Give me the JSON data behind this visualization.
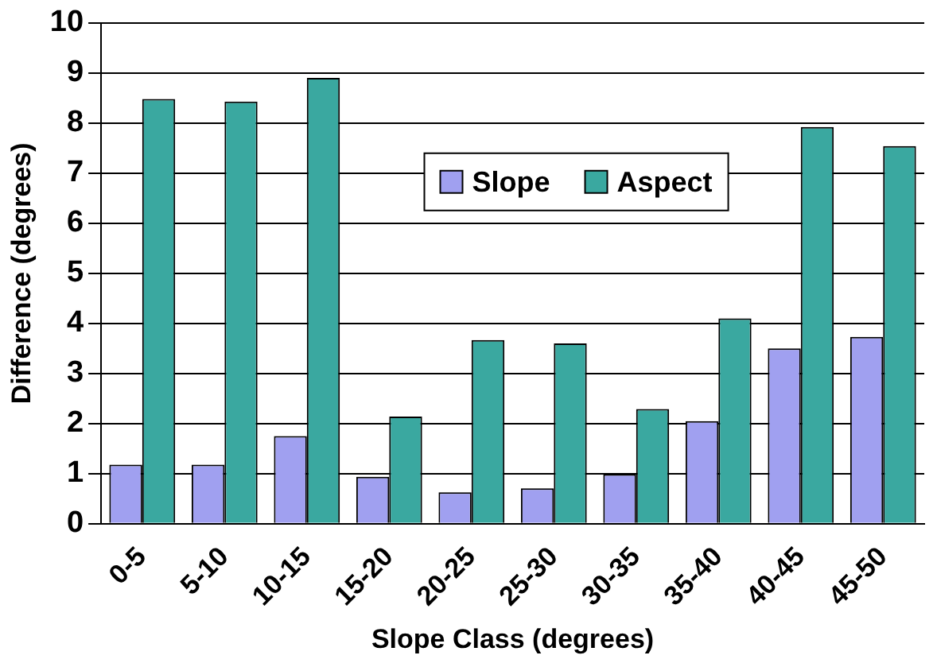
{
  "chart_data": {
    "type": "bar",
    "xlabel": "Slope Class (degrees)",
    "ylabel": "Difference (degrees)",
    "categories": [
      "0-5",
      "5-10",
      "10-15",
      "15-20",
      "20-25",
      "25-30",
      "30-35",
      "35-40",
      "40-45",
      "45-50"
    ],
    "series": [
      {
        "name": "Slope",
        "color": "#a0a0f0",
        "values": [
          1.18,
          1.18,
          1.75,
          0.94,
          0.63,
          0.71,
          0.99,
          2.05,
          3.5,
          3.73
        ]
      },
      {
        "name": "Aspect",
        "color": "#3aa8a0",
        "values": [
          8.48,
          8.43,
          8.9,
          2.14,
          3.67,
          3.6,
          2.29,
          4.1,
          7.92,
          7.54
        ]
      }
    ],
    "ylim": [
      0,
      10
    ],
    "yticks": [
      0,
      1,
      2,
      3,
      4,
      5,
      6,
      7,
      8,
      9,
      10
    ],
    "grid": "y",
    "legend": "top"
  }
}
